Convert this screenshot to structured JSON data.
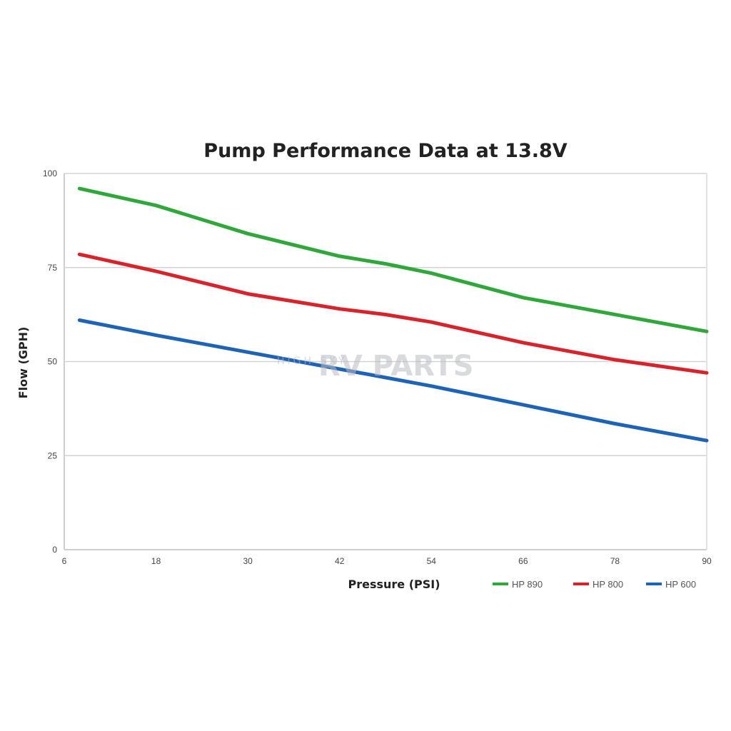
{
  "chart_data": {
    "type": "line",
    "title": "Pump Performance Data at 13.8V",
    "xlabel": "Pressure (PSI)",
    "ylabel": "Flow (GPH)",
    "xlim": [
      6,
      90
    ],
    "ylim": [
      0,
      100
    ],
    "x_ticks": [
      6,
      18,
      30,
      42,
      54,
      66,
      78,
      90
    ],
    "y_ticks": [
      0,
      25,
      50,
      75,
      100
    ],
    "grid": "horizontal",
    "legend_position": "bottom-right",
    "series": [
      {
        "name": "HP 890",
        "color": "#2fa83a",
        "points": [
          [
            8,
            96
          ],
          [
            18,
            91.5
          ],
          [
            30,
            84
          ],
          [
            42,
            78
          ],
          [
            48,
            76
          ],
          [
            54,
            73.5
          ],
          [
            66,
            67
          ],
          [
            78,
            62.5
          ],
          [
            90,
            58
          ]
        ]
      },
      {
        "name": "HP 800",
        "color": "#d8232a",
        "points": [
          [
            8,
            78.5
          ],
          [
            18,
            74
          ],
          [
            30,
            68
          ],
          [
            42,
            64
          ],
          [
            48,
            62.5
          ],
          [
            54,
            60.5
          ],
          [
            66,
            55
          ],
          [
            78,
            50.5
          ],
          [
            90,
            47
          ]
        ]
      },
      {
        "name": "HP 600",
        "color": "#1d63b8",
        "points": [
          [
            8,
            61
          ],
          [
            18,
            57
          ],
          [
            30,
            52.5
          ],
          [
            42,
            48
          ],
          [
            54,
            43.5
          ],
          [
            66,
            38.5
          ],
          [
            78,
            33.5
          ],
          [
            90,
            29
          ]
        ]
      }
    ]
  },
  "watermark": {
    "small_text": "HIGH SKY",
    "brand_text": "RV PARTS"
  }
}
